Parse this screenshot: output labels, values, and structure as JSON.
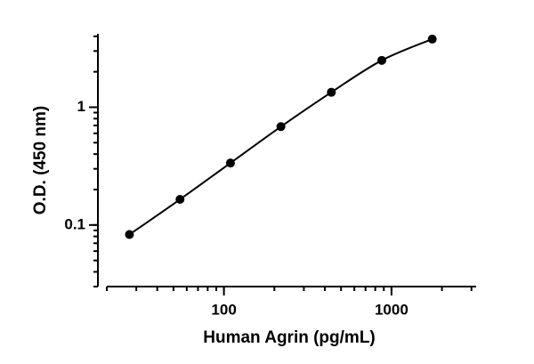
{
  "chart_data": {
    "type": "scatter",
    "x_label": "Human Agrin (pg/mL)",
    "y_label": "O.D. (450 nm)",
    "x": [
      27.3,
      54.7,
      109.4,
      218.8,
      437.5,
      875,
      1750
    ],
    "series": [
      {
        "color": "#000000",
        "values": [
          0.083,
          0.165,
          0.336,
          0.684,
          1.34,
          2.5,
          3.79
        ]
      }
    ],
    "xlim": [
      20,
      3200
    ],
    "ylim": [
      0.03,
      4.2
    ],
    "xticks": [
      100,
      1000
    ],
    "yticks": [
      0.1,
      1
    ],
    "log_x": true,
    "log_y": true,
    "minor_ticks": true,
    "fit_line": true
  }
}
